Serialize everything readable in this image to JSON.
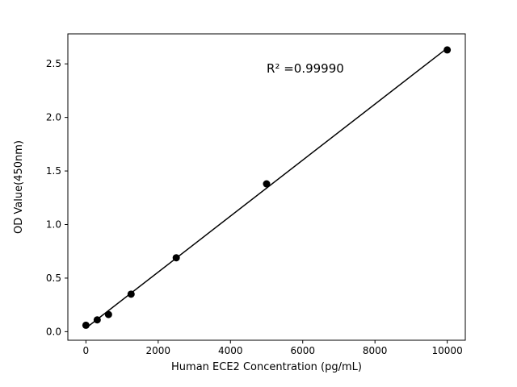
{
  "chart_data": {
    "type": "scatter",
    "title": "",
    "x": [
      0,
      312.5,
      625,
      1250,
      2500,
      5000,
      10000
    ],
    "y": [
      0.06,
      0.11,
      0.16,
      0.35,
      0.69,
      1.38,
      2.63
    ],
    "xlabel": "Human ECE2 Concentration (pg/mL)",
    "ylabel": "OD Value(450nm)",
    "annotation": "R² =0.99990",
    "annotation_pos": {
      "x": 5000,
      "y": 2.42
    },
    "xlim": [
      -500,
      10500
    ],
    "ylim": [
      -0.08,
      2.78
    ],
    "xticks": [
      0,
      2000,
      4000,
      6000,
      8000,
      10000
    ],
    "yticks": [
      0.0,
      0.5,
      1.0,
      1.5,
      2.0,
      2.5
    ],
    "grid": false,
    "legend": false,
    "fit_line": true,
    "marker_color": "#000000",
    "line_color": "#000000",
    "background_color": "#ffffff"
  }
}
